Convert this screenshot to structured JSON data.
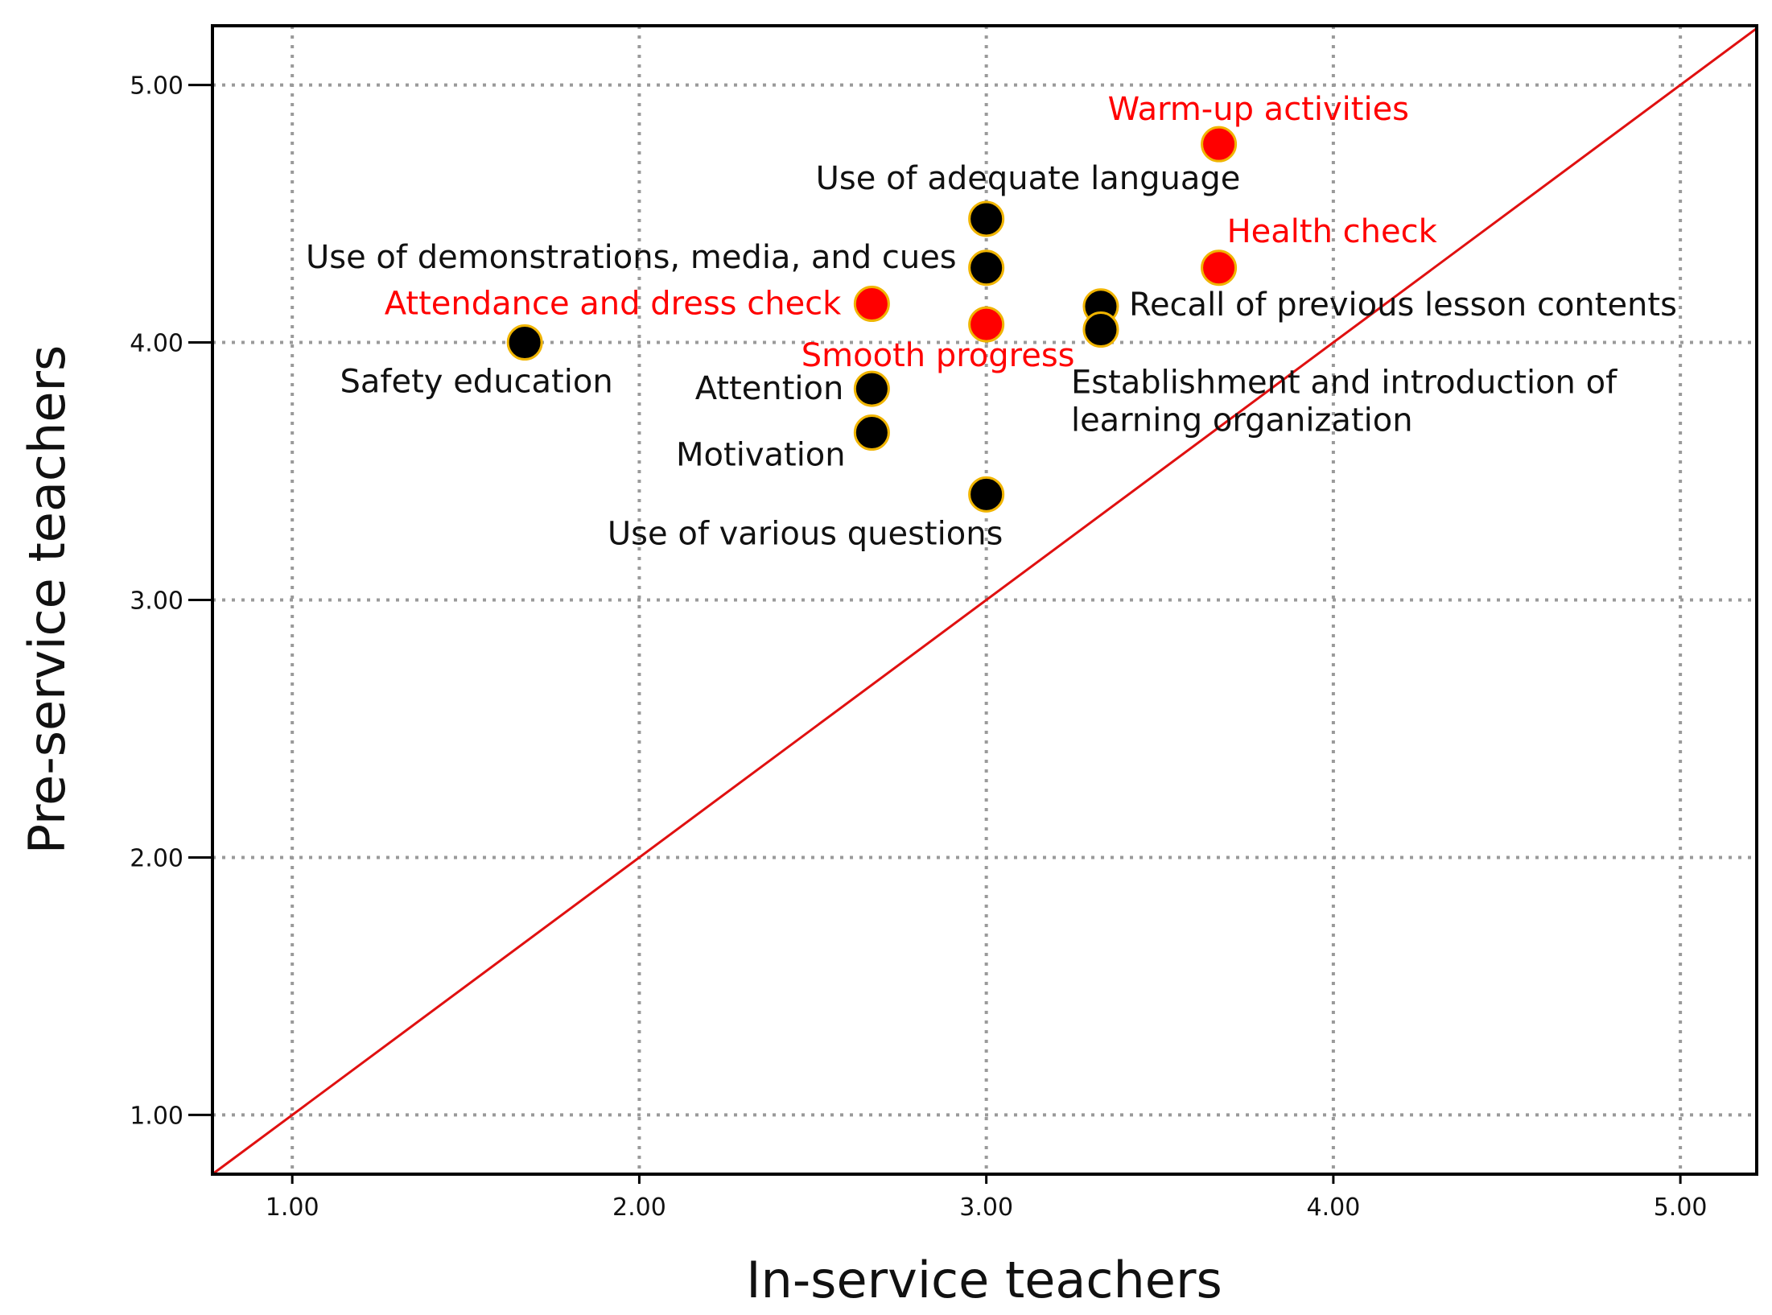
{
  "chart_data": {
    "type": "scatter",
    "title": "",
    "xlabel": "In-service teachers",
    "ylabel": "Pre-service teachers",
    "xlim": [
      0.77,
      5.22
    ],
    "ylim": [
      0.77,
      5.23
    ],
    "xticks": [
      "1.00",
      "2.00",
      "3.00",
      "4.00",
      "5.00"
    ],
    "yticks": [
      "1.00",
      "2.00",
      "3.00",
      "4.00",
      "5.00"
    ],
    "grid": true,
    "reference_line": "y = x",
    "colors": {
      "red": "#ff0000",
      "black": "#000000",
      "outline": "#f0b400",
      "reference": "#e01010"
    },
    "points": [
      {
        "label": "Warm-up activities",
        "x": 3.67,
        "y": 4.77,
        "color": "red"
      },
      {
        "label": "Use of adequate language",
        "x": 3.0,
        "y": 4.48,
        "color": "black"
      },
      {
        "label": "Health check",
        "x": 3.67,
        "y": 4.29,
        "color": "red"
      },
      {
        "label": "Use of demonstrations, media, and cues",
        "x": 3.0,
        "y": 4.29,
        "color": "black"
      },
      {
        "label": "Attendance and dress check",
        "x": 2.67,
        "y": 4.15,
        "color": "red"
      },
      {
        "label": "Recall of previous lesson contents",
        "x": 3.33,
        "y": 4.14,
        "color": "black"
      },
      {
        "label": "Smooth progress",
        "x": 3.0,
        "y": 4.07,
        "color": "red"
      },
      {
        "label": "Establishment and introduction of learning organization",
        "x": 3.33,
        "y": 4.05,
        "color": "black"
      },
      {
        "label": "Safety education",
        "x": 1.67,
        "y": 4.0,
        "color": "black"
      },
      {
        "label": "Attention",
        "x": 2.67,
        "y": 3.82,
        "color": "black"
      },
      {
        "label": "Motivation",
        "x": 2.67,
        "y": 3.65,
        "color": "black"
      },
      {
        "label": "Use of various questions",
        "x": 3.0,
        "y": 3.41,
        "color": "black"
      }
    ],
    "point_text": {
      "Establishment and introduction of learning organization": [
        "Establishment and introduction of",
        "learning organization"
      ]
    }
  }
}
